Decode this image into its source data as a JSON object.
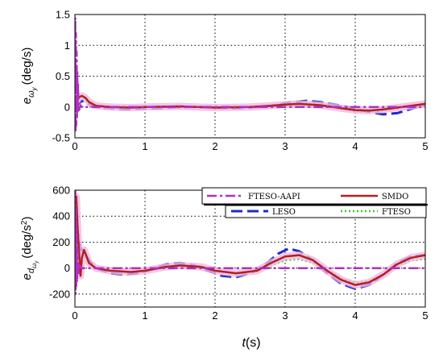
{
  "colors": {
    "ftesoaapi": "#b030c0",
    "smdo": "#b02020",
    "leso": "#1a2ccf",
    "fteso": "#33cc22",
    "halo": "#f2b6e2"
  },
  "chart_data": [
    {
      "type": "line",
      "id": "top",
      "ylabel_main": "e",
      "ylabel_sub": "ω",
      "ylabel_subsub": "y",
      "ylabel_unit": "(deg/s)",
      "xlim": [
        0,
        5
      ],
      "ylim": [
        -0.5,
        1.5
      ],
      "xticks": [
        "0",
        "1",
        "2",
        "3",
        "4",
        "5"
      ],
      "yticks": [
        "-0.5",
        "0",
        "0.5",
        "1",
        "1.5"
      ],
      "grid": true,
      "series": [
        {
          "key": "leso",
          "x": [
            0,
            0.03,
            0.06,
            0.1,
            0.15,
            0.2,
            0.3,
            0.5,
            0.7,
            0.9,
            1.2,
            1.5,
            1.8,
            2.0,
            2.3,
            2.5,
            2.8,
            3.0,
            3.2,
            3.3,
            3.5,
            3.7,
            3.9,
            4.0,
            4.2,
            4.4,
            4.6,
            4.8,
            5.0
          ],
          "y": [
            0,
            0.02,
            0.06,
            0.1,
            0.08,
            0.04,
            0,
            -0.02,
            -0.04,
            -0.03,
            -0.02,
            0,
            0,
            -0.01,
            -0.02,
            -0.01,
            0.02,
            0.06,
            0.09,
            0.1,
            0.08,
            0.04,
            0,
            -0.03,
            -0.08,
            -0.12,
            -0.1,
            -0.03,
            0.04
          ]
        },
        {
          "key": "fteso",
          "x": [
            0,
            0.05,
            0.1,
            0.15,
            0.2,
            0.4,
            0.7,
            1.0,
            1.5,
            2.0,
            2.5,
            2.8,
            3.0,
            3.2,
            3.4,
            3.6,
            3.8,
            4.0,
            4.2,
            4.4,
            4.6,
            4.8,
            5.0
          ],
          "y": [
            0,
            0.08,
            0.14,
            0.12,
            0.05,
            0,
            -0.02,
            -0.01,
            0.01,
            -0.01,
            0,
            0.02,
            0.05,
            0.07,
            0.05,
            0.02,
            -0.03,
            -0.07,
            -0.08,
            -0.06,
            -0.02,
            0.02,
            0.05
          ]
        },
        {
          "key": "smdo",
          "x": [
            0,
            0.03,
            0.06,
            0.1,
            0.15,
            0.2,
            0.3,
            0.5,
            0.8,
            1.0,
            1.5,
            2.0,
            2.5,
            2.8,
            3.0,
            3.2,
            3.5,
            3.8,
            4.0,
            4.2,
            4.4,
            4.6,
            4.8,
            5.0
          ],
          "y": [
            0,
            0.1,
            0.16,
            0.18,
            0.15,
            0.08,
            0.02,
            0,
            -0.01,
            0,
            0.01,
            -0.01,
            0,
            0.02,
            0.04,
            0.05,
            0.03,
            -0.02,
            -0.05,
            -0.06,
            -0.04,
            -0.01,
            0.02,
            0.05
          ]
        },
        {
          "key": "ftesoaapi",
          "x": [
            0,
            0.005,
            0.01,
            0.015,
            0.02,
            0.025,
            0.03,
            0.035,
            0.04,
            0.045,
            0.05,
            0.06,
            0.08,
            0.1,
            0.15,
            0.3,
            1.0,
            2.0,
            3.0,
            4.0,
            5.0
          ],
          "y": [
            0,
            1.45,
            -0.4,
            1.2,
            -0.3,
            0.9,
            -0.2,
            0.6,
            -0.1,
            0.4,
            0.1,
            -0.05,
            0.03,
            0,
            0,
            0,
            0,
            0,
            0,
            0,
            0
          ]
        }
      ]
    },
    {
      "type": "line",
      "id": "bottom",
      "ylabel_main": "e",
      "ylabel_sub": "d",
      "ylabel_subsub": "ω",
      "ylabel_subsubsub": "y",
      "ylabel_unit": "(deg/s",
      "ylabel_sup": "2",
      "ylabel_close": ")",
      "xlabel_main": "t",
      "xlabel_unit": "(s)",
      "xlim": [
        0,
        5
      ],
      "ylim": [
        -300,
        600
      ],
      "xticks": [
        "0",
        "1",
        "2",
        "3",
        "4",
        "5"
      ],
      "yticks": [
        "-200",
        "0",
        "200",
        "400",
        "600"
      ],
      "ytick_values": [
        -200,
        0,
        200,
        400,
        600
      ],
      "grid": true,
      "legend": {
        "placement": "top-right",
        "entries": [
          {
            "key": "ftesoaapi",
            "label": "FTESO-AAPI"
          },
          {
            "key": "smdo",
            "label": "SMDO"
          },
          {
            "key": "leso",
            "label": "LESO"
          },
          {
            "key": "fteso",
            "label": "FTESO"
          }
        ]
      },
      "series": [
        {
          "key": "leso",
          "x": [
            0,
            0.02,
            0.05,
            0.08,
            0.12,
            0.2,
            0.3,
            0.5,
            0.7,
            0.9,
            1.1,
            1.3,
            1.5,
            1.7,
            1.9,
            2.1,
            2.3,
            2.5,
            2.7,
            2.9,
            3.05,
            3.2,
            3.4,
            3.6,
            3.8,
            4.0,
            4.2,
            4.4,
            4.6,
            4.8,
            5.0
          ],
          "y": [
            0,
            350,
            250,
            150,
            130,
            60,
            0,
            -40,
            -50,
            -40,
            -10,
            30,
            40,
            20,
            -20,
            -60,
            -70,
            -40,
            20,
            110,
            150,
            130,
            60,
            -40,
            -120,
            -160,
            -130,
            -50,
            40,
            90,
            100
          ]
        },
        {
          "key": "fteso",
          "x": [
            0,
            0.02,
            0.05,
            0.08,
            0.12,
            0.2,
            0.3,
            0.5,
            0.8,
            1.0,
            1.3,
            1.5,
            1.8,
            2.0,
            2.3,
            2.6,
            2.8,
            3.0,
            3.2,
            3.4,
            3.6,
            3.8,
            4.0,
            4.2,
            4.4,
            4.6,
            4.8,
            5.0
          ],
          "y": [
            0,
            300,
            220,
            120,
            100,
            40,
            0,
            -20,
            -30,
            -20,
            10,
            20,
            10,
            -20,
            -40,
            -20,
            20,
            60,
            70,
            40,
            -20,
            -80,
            -110,
            -100,
            -50,
            20,
            60,
            70
          ]
        },
        {
          "key": "smdo",
          "x": [
            0,
            0.02,
            0.04,
            0.06,
            0.08,
            0.1,
            0.13,
            0.16,
            0.2,
            0.3,
            0.5,
            0.8,
            1.0,
            1.3,
            1.5,
            1.8,
            2.0,
            2.3,
            2.6,
            2.8,
            3.0,
            3.2,
            3.4,
            3.6,
            3.8,
            4.0,
            4.2,
            4.4,
            4.6,
            4.8,
            5.0
          ],
          "y": [
            0,
            550,
            300,
            120,
            -60,
            80,
            140,
            100,
            40,
            0,
            -20,
            -30,
            -20,
            10,
            20,
            10,
            -20,
            -40,
            -20,
            40,
            90,
            100,
            60,
            -20,
            -90,
            -130,
            -110,
            -50,
            30,
            80,
            100
          ]
        },
        {
          "key": "ftesoaapi",
          "x": [
            0,
            0.005,
            0.01,
            0.015,
            0.02,
            0.025,
            0.03,
            0.04,
            0.05,
            0.07,
            0.1,
            0.2,
            1.0,
            2.0,
            3.0,
            4.0,
            5.0
          ],
          "y": [
            0,
            600,
            -200,
            450,
            -150,
            300,
            -100,
            150,
            -50,
            20,
            0,
            0,
            0,
            0,
            0,
            0,
            0
          ]
        }
      ]
    }
  ]
}
